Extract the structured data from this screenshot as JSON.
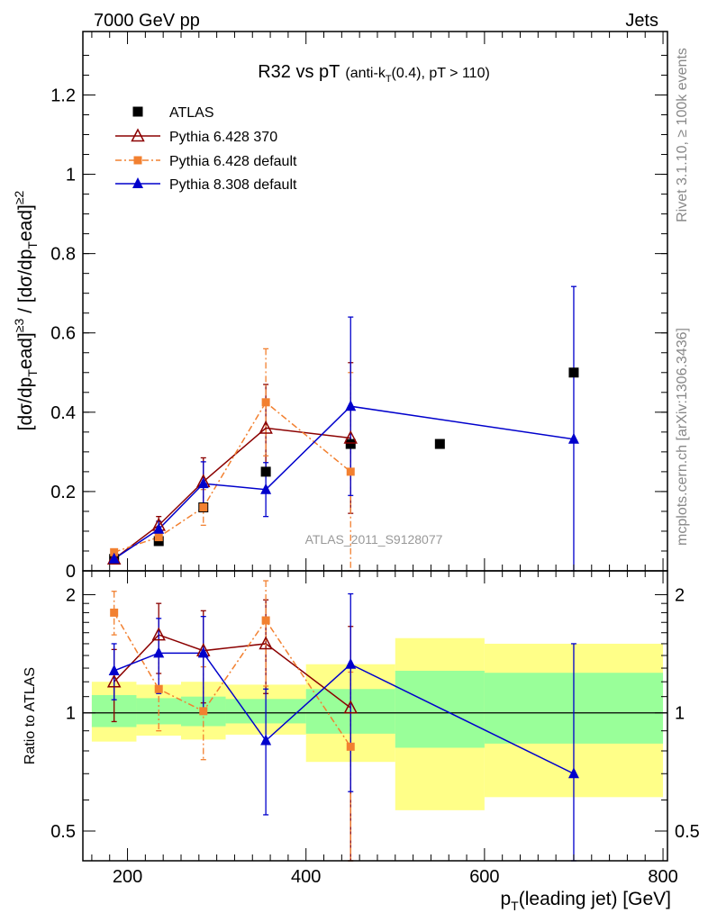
{
  "header": {
    "left": "7000 GeV pp",
    "right": "Jets",
    "side_top": "Rivet 3.1.10, ≥ 100k events",
    "side_bottom": "mcplots.cern.ch [arXiv:1306.3436]"
  },
  "chart_data": [
    {
      "type": "scatter",
      "title_main": "R32 vs pT",
      "title_sub": "(anti-k",
      "title_sub_sub": "T",
      "title_sub_rest": "(0.4), pT > 110)",
      "watermark": "ATLAS_2011_S9128077",
      "ylabel": "[dσ/dp",
      "xlim": [
        150,
        805
      ],
      "ylim": [
        0,
        1.36
      ],
      "yticks": [
        0,
        0.2,
        0.4,
        0.6,
        0.8,
        1,
        1.2
      ],
      "ytick_labels": [
        "0",
        "0.2",
        "0.4",
        "0.6",
        "0.8",
        "1",
        "1.2"
      ],
      "legend_placement": "top-left",
      "series": [
        {
          "name": "ATLAS",
          "color": "#000000",
          "marker": "square",
          "x": [
            185,
            235,
            285,
            355,
            450,
            550,
            700
          ],
          "y": [
            0.03,
            0.075,
            0.16,
            0.25,
            0.32,
            0.32,
            0.5
          ]
        },
        {
          "name": "Pythia 6.428 370",
          "color": "#8b0000",
          "marker": "triangle-open",
          "line": "solid",
          "x": [
            185,
            235,
            285,
            355,
            450
          ],
          "y": [
            0.03,
            0.115,
            0.225,
            0.36,
            0.335
          ],
          "err": [
            0.005,
            0.022,
            0.06,
            0.11,
            0.19
          ]
        },
        {
          "name": "Pythia 6.428 default",
          "color": "#f28030",
          "marker": "square-small",
          "line": "dashdot",
          "x": [
            185,
            235,
            285,
            355,
            450
          ],
          "y": [
            0.047,
            0.085,
            0.16,
            0.425,
            0.25
          ],
          "err": [
            0.008,
            0.02,
            0.045,
            0.135,
            0.25
          ]
        },
        {
          "name": "Pythia 8.308 default",
          "color": "#0000cc",
          "marker": "triangle",
          "line": "solid",
          "x": [
            185,
            235,
            285,
            355,
            450,
            700
          ],
          "y": [
            0.03,
            0.105,
            0.22,
            0.205,
            0.415,
            0.332
          ],
          "err": [
            0.005,
            0.02,
            0.055,
            0.068,
            0.225,
            0.385
          ]
        }
      ]
    },
    {
      "type": "scatter",
      "ylabel": "Ratio to ATLAS",
      "xlabel": "p",
      "xlabel_sub": "T",
      "xlabel_rest": "(leading jet) [GeV]",
      "xlim": [
        150,
        805
      ],
      "xticks": [
        200,
        400,
        600,
        800
      ],
      "xtick_labels": [
        "200",
        "400",
        "600",
        "800"
      ],
      "ylim": [
        0.42,
        2.3
      ],
      "yscale": "log",
      "yticks": [
        0.5,
        1,
        2
      ],
      "ytick_labels": [
        "0.5",
        "1",
        "2"
      ],
      "bands": {
        "yellow_color": "#ffff88",
        "green_color": "#99ff99",
        "bins": [
          {
            "x0": 160,
            "x1": 210,
            "yellow": [
              0.845,
              1.2
            ],
            "green": [
              0.92,
              1.11
            ]
          },
          {
            "x0": 210,
            "x1": 260,
            "yellow": [
              0.875,
              1.18
            ],
            "green": [
              0.935,
              1.09
            ]
          },
          {
            "x0": 260,
            "x1": 310,
            "yellow": [
              0.855,
              1.2
            ],
            "green": [
              0.925,
              1.1
            ]
          },
          {
            "x0": 310,
            "x1": 400,
            "yellow": [
              0.88,
              1.18
            ],
            "green": [
              0.94,
              1.085
            ]
          },
          {
            "x0": 400,
            "x1": 500,
            "yellow": [
              0.75,
              1.33
            ],
            "green": [
              0.885,
              1.15
            ]
          },
          {
            "x0": 500,
            "x1": 600,
            "yellow": [
              0.565,
              1.55
            ],
            "green": [
              0.815,
              1.28
            ]
          },
          {
            "x0": 600,
            "x1": 800,
            "yellow": [
              0.61,
              1.5
            ],
            "green": [
              0.835,
              1.265
            ]
          }
        ]
      },
      "reference_line": 1,
      "series": [
        {
          "name": "Pythia 6.428 370",
          "color": "#8b0000",
          "marker": "triangle-open",
          "x": [
            185,
            235,
            285,
            355,
            450
          ],
          "y": [
            1.2,
            1.58,
            1.44,
            1.5,
            1.03
          ],
          "err_lo": [
            0.25,
            0.32,
            0.38,
            0.38,
            0.63
          ],
          "err_hi": [
            0.25,
            0.32,
            0.38,
            0.44,
            0.63
          ]
        },
        {
          "name": "Pythia 6.428 default",
          "color": "#f28030",
          "marker": "square-small",
          "x": [
            185,
            235,
            285,
            355,
            450
          ],
          "y": [
            1.8,
            1.15,
            1.01,
            1.72,
            0.82
          ],
          "err_lo": [
            0.22,
            0.25,
            0.25,
            0.55,
            0.45
          ],
          "err_hi": [
            0.24,
            0.25,
            0.3,
            0.45,
            0.45
          ]
        },
        {
          "name": "Pythia 8.308 default",
          "color": "#0000cc",
          "marker": "triangle",
          "x": [
            185,
            235,
            285,
            355,
            450,
            700
          ],
          "y": [
            1.28,
            1.42,
            1.42,
            0.85,
            1.33,
            0.7
          ],
          "err_lo": [
            0.2,
            0.3,
            0.4,
            0.3,
            0.7,
            0.4
          ],
          "err_hi": [
            0.22,
            0.32,
            0.34,
            0.3,
            0.68,
            0.8
          ]
        }
      ]
    }
  ]
}
